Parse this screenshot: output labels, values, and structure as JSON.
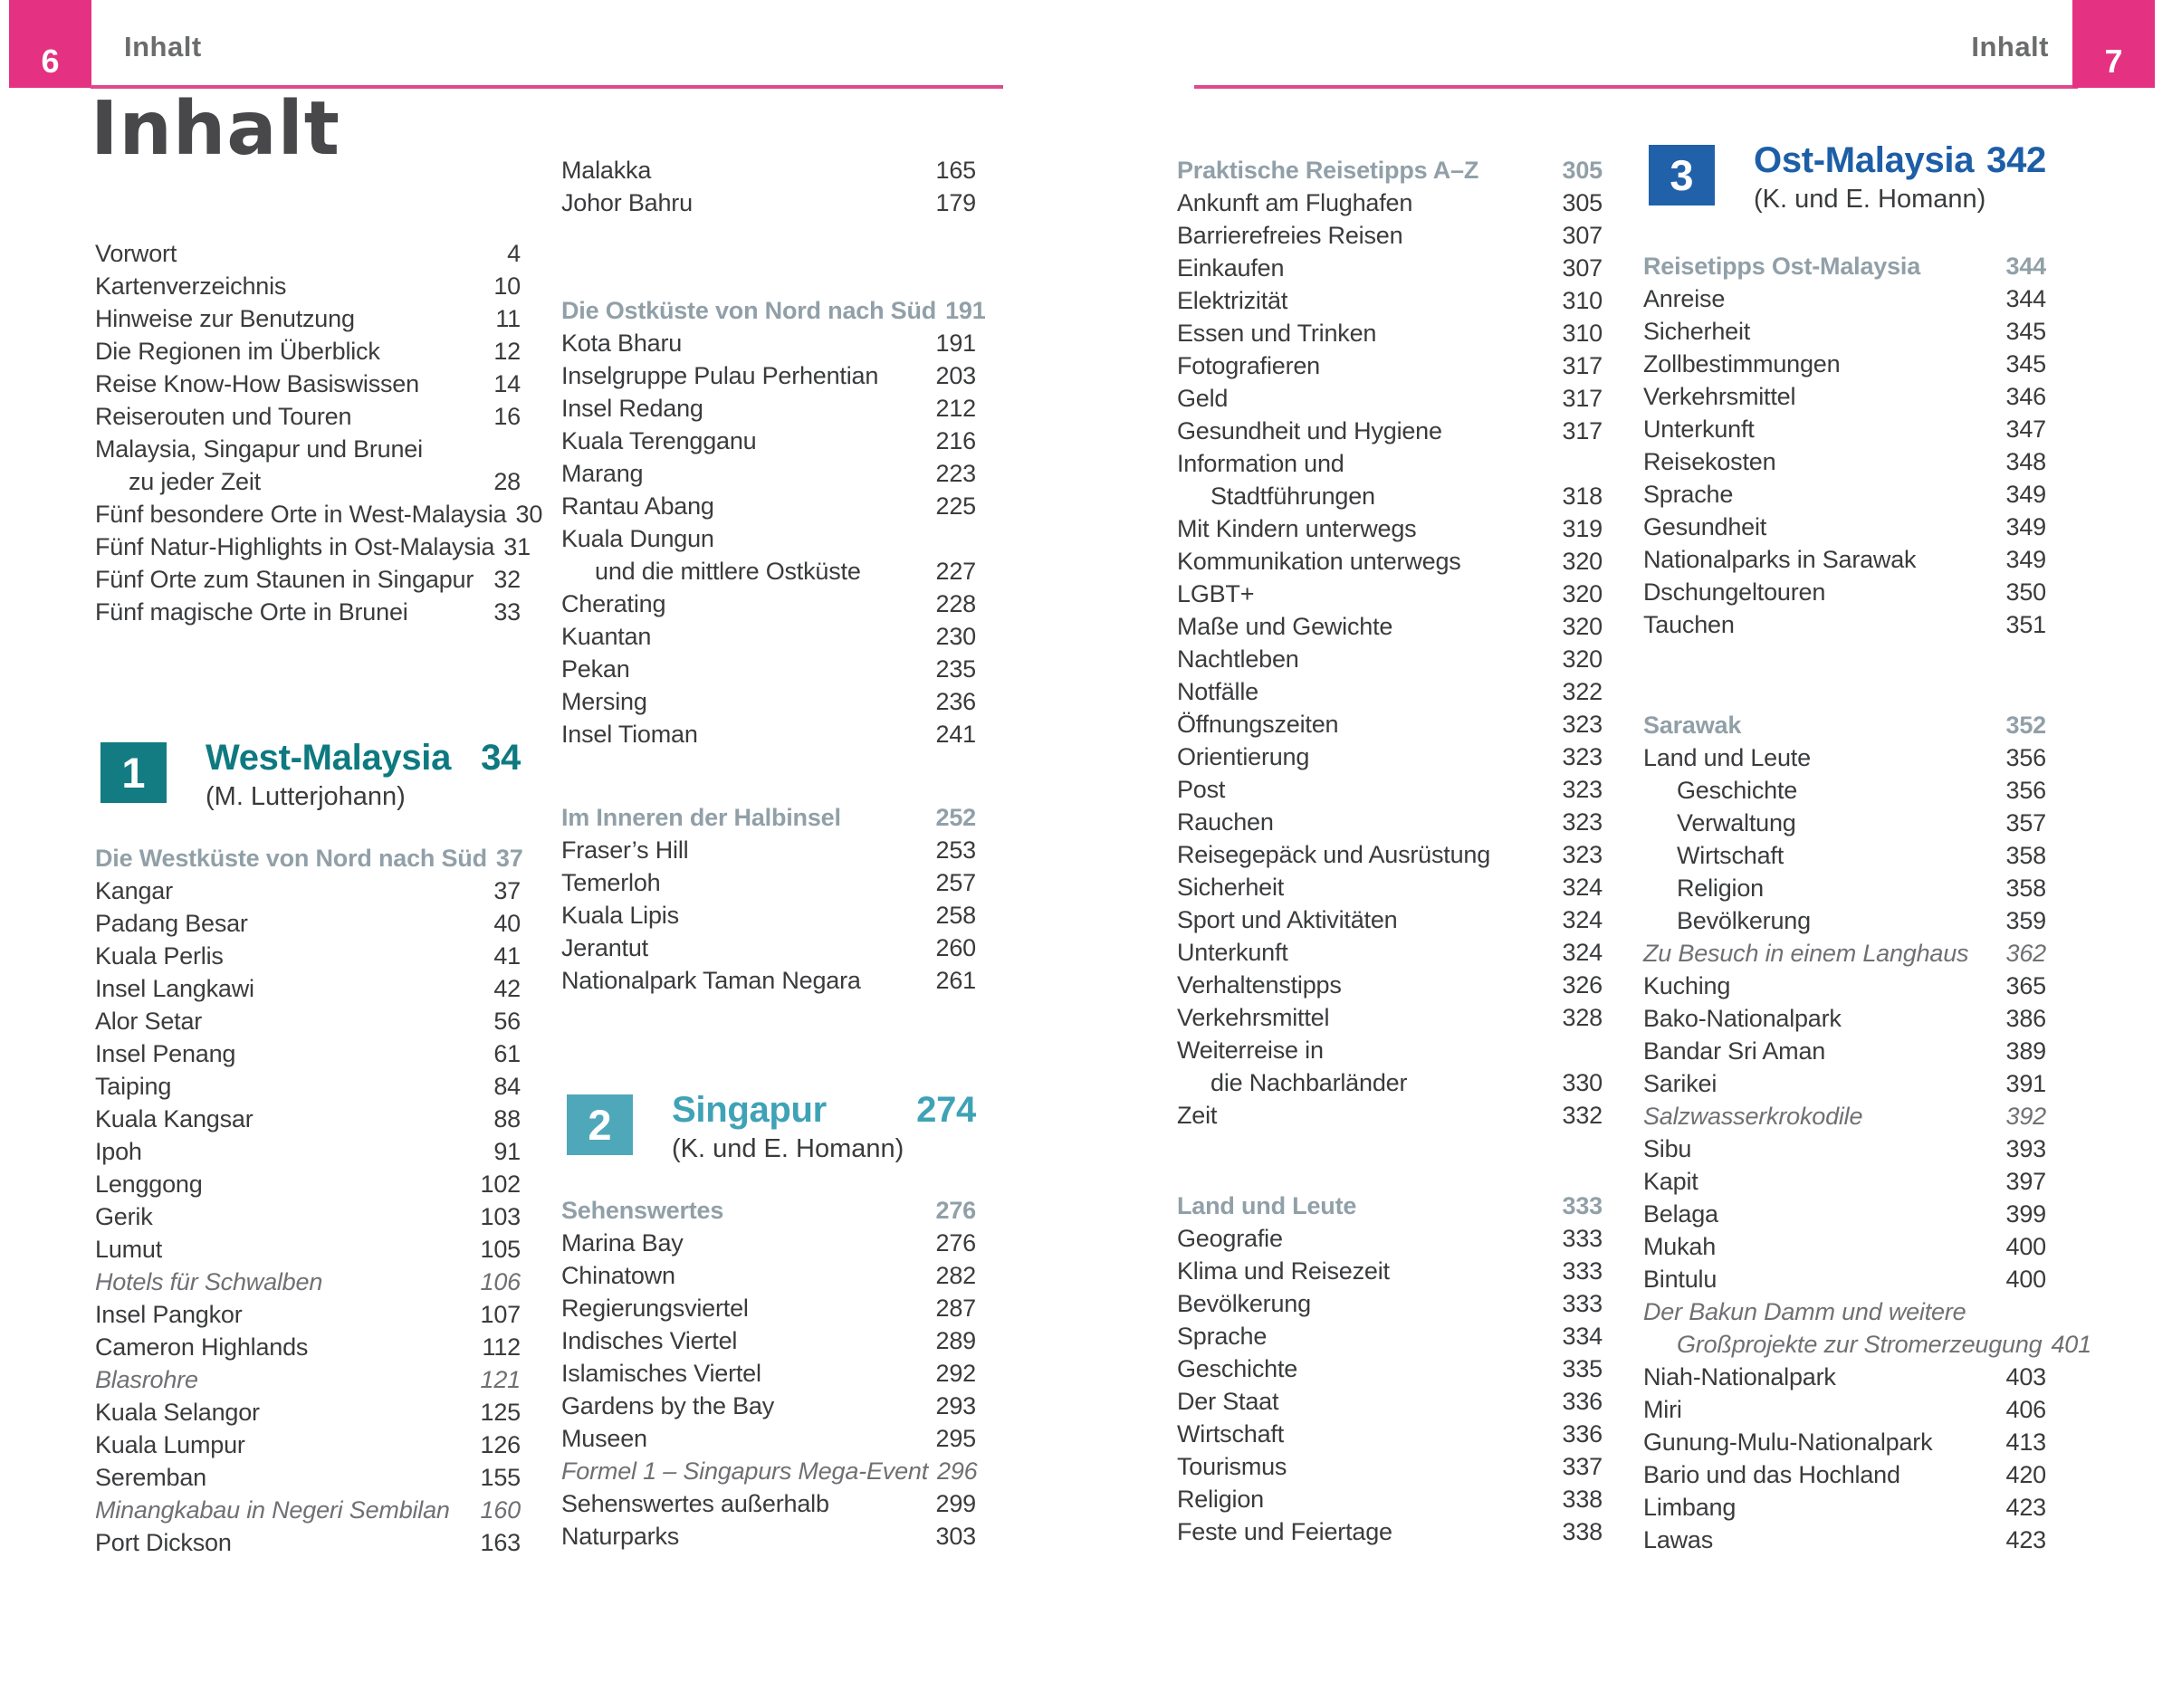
{
  "header": {
    "left_page_number": "6",
    "left_title": "Inhalt",
    "right_title": "Inhalt",
    "right_page_number": "7",
    "accent_color": "#e53181",
    "rule_color": "#dd4b8b"
  },
  "main_title": "Inhalt",
  "colors": {
    "body_text": "#3a3b3d",
    "italic_text": "#6f7073",
    "subheader": "#91a0a8",
    "section1": "#127c82",
    "section2": "#4fa8ba",
    "section3": "#2161a9"
  },
  "columns": [
    {
      "id": "1",
      "rows": [
        {
          "t": "Vorwort",
          "p": "4"
        },
        {
          "t": "Kartenverzeichnis",
          "p": "10"
        },
        {
          "t": "Hinweise zur Benutzung",
          "p": "11"
        },
        {
          "t": "Die Regionen im Überblick",
          "p": "12"
        },
        {
          "t": "Reise Know-How Basiswissen",
          "p": "14"
        },
        {
          "t": "Reiserouten und Touren",
          "p": "16"
        },
        {
          "t": "Malaysia, Singapur und Brunei",
          "p": ""
        },
        {
          "t": "zu jeder Zeit",
          "p": "28",
          "indent": true
        },
        {
          "t": "Fünf besondere Orte in West-Malaysia",
          "p": "30"
        },
        {
          "t": "Fünf Natur-Highlights in Ost-Malaysia",
          "p": "31"
        },
        {
          "t": "Fünf Orte zum Staunen in Singapur",
          "p": "32"
        },
        {
          "t": "Fünf magische Orte in Brunei",
          "p": "33"
        },
        {
          "type": "gap",
          "size": 124
        },
        {
          "type": "section",
          "number": "1",
          "title": "West-Malaysia",
          "p": "34",
          "author": "(M. Lutterjohann)",
          "box_color": "#127c82",
          "title_color": "#0e7a80"
        },
        {
          "type": "subheader",
          "t": "Die Westküste von Nord nach Süd",
          "p": "37"
        },
        {
          "t": "Kangar",
          "p": "37"
        },
        {
          "t": "Padang Besar",
          "p": "40"
        },
        {
          "t": "Kuala Perlis",
          "p": "41"
        },
        {
          "t": "Insel Langkawi",
          "p": "42"
        },
        {
          "t": "Alor Setar",
          "p": "56"
        },
        {
          "t": "Insel Penang",
          "p": "61"
        },
        {
          "t": "Taiping",
          "p": "84"
        },
        {
          "t": "Kuala Kangsar",
          "p": "88"
        },
        {
          "t": "Ipoh",
          "p": "91"
        },
        {
          "t": "Lenggong",
          "p": "102"
        },
        {
          "t": "Gerik",
          "p": "103"
        },
        {
          "t": "Lumut",
          "p": "105"
        },
        {
          "t": "Hotels für Schwalben",
          "p": "106",
          "style": "italic"
        },
        {
          "t": "Insel Pangkor",
          "p": "107"
        },
        {
          "t": "Cameron Highlands",
          "p": "112"
        },
        {
          "t": "Blasrohre",
          "p": "121",
          "style": "italic"
        },
        {
          "t": "Kuala Selangor",
          "p": "125"
        },
        {
          "t": "Kuala Lumpur",
          "p": "126"
        },
        {
          "t": "Seremban",
          "p": "155"
        },
        {
          "t": "Minangkabau in Negeri Sembilan",
          "p": "160",
          "style": "italic"
        },
        {
          "t": "Port Dickson",
          "p": "163"
        }
      ]
    },
    {
      "id": "2",
      "rows": [
        {
          "t": "Malakka",
          "p": "165"
        },
        {
          "t": "Johor Bahru",
          "p": "179"
        },
        {
          "type": "gap",
          "size": 83
        },
        {
          "type": "subheader",
          "t": "Die Ostküste von Nord nach Süd",
          "p": "191"
        },
        {
          "t": "Kota Bharu",
          "p": "191"
        },
        {
          "t": "Inselgruppe Pulau Perhentian",
          "p": "203"
        },
        {
          "t": "Insel Redang",
          "p": "212"
        },
        {
          "t": "Kuala Terengganu",
          "p": "216"
        },
        {
          "t": "Marang",
          "p": "223"
        },
        {
          "t": "Rantau Abang",
          "p": "225"
        },
        {
          "t": "Kuala Dungun",
          "p": ""
        },
        {
          "t": "und die mittlere Ostküste",
          "p": "227",
          "indent": true
        },
        {
          "t": "Cherating",
          "p": "228"
        },
        {
          "t": "Kuantan",
          "p": "230"
        },
        {
          "t": "Pekan",
          "p": "235"
        },
        {
          "t": "Mersing",
          "p": "236"
        },
        {
          "t": "Insel Tioman",
          "p": "241"
        },
        {
          "type": "gap",
          "size": 56
        },
        {
          "type": "subheader",
          "t": "Im Inneren der Halbinsel",
          "p": "252"
        },
        {
          "t": "Fraser’s Hill",
          "p": "253"
        },
        {
          "t": "Temerloh",
          "p": "257"
        },
        {
          "t": "Kuala Lipis",
          "p": "258"
        },
        {
          "t": "Jerantut",
          "p": "260"
        },
        {
          "t": "Nationalpark Taman Negara",
          "p": "261"
        },
        {
          "type": "gap",
          "size": 106
        },
        {
          "type": "section",
          "number": "2",
          "title": "Singapur",
          "p": "274",
          "author": "(K. und E. Homann)",
          "box_color": "#4fa8ba",
          "title_color": "#3fa2b6"
        },
        {
          "type": "subheader",
          "t": "Sehenswertes",
          "p": "276"
        },
        {
          "t": "Marina Bay",
          "p": "276"
        },
        {
          "t": "Chinatown",
          "p": "282"
        },
        {
          "t": "Regierungsviertel",
          "p": "287"
        },
        {
          "t": "Indisches Viertel",
          "p": "289"
        },
        {
          "t": "Islamisches Viertel",
          "p": "292"
        },
        {
          "t": "Gardens by the Bay",
          "p": "293"
        },
        {
          "t": "Museen",
          "p": "295"
        },
        {
          "t": "Formel 1 – Singapurs Mega-Event",
          "p": "296",
          "style": "italic"
        },
        {
          "t": "Sehenswertes außerhalb",
          "p": "299"
        },
        {
          "t": "Naturparks",
          "p": "303"
        }
      ]
    },
    {
      "id": "3",
      "rows": [
        {
          "type": "subheader",
          "t": "Praktische Reisetipps A–Z",
          "p": "305"
        },
        {
          "t": "Ankunft am Flughafen",
          "p": "305"
        },
        {
          "t": "Barrierefreies Reisen",
          "p": "307"
        },
        {
          "t": "Einkaufen",
          "p": "307"
        },
        {
          "t": "Elektrizität",
          "p": "310"
        },
        {
          "t": "Essen und Trinken",
          "p": "310"
        },
        {
          "t": "Fotografieren",
          "p": "317"
        },
        {
          "t": "Geld",
          "p": "317"
        },
        {
          "t": "Gesundheit und Hygiene",
          "p": "317"
        },
        {
          "t": "Information und",
          "p": ""
        },
        {
          "t": "Stadtführungen",
          "p": "318",
          "indent": true
        },
        {
          "t": "Mit Kindern unterwegs",
          "p": "319"
        },
        {
          "t": "Kommunikation unterwegs",
          "p": "320"
        },
        {
          "t": "LGBT+",
          "p": "320"
        },
        {
          "t": "Maße und Gewichte",
          "p": "320"
        },
        {
          "t": "Nachtleben",
          "p": "320"
        },
        {
          "t": "Notfälle",
          "p": "322"
        },
        {
          "t": "Öffnungszeiten",
          "p": "323"
        },
        {
          "t": "Orientierung",
          "p": "323"
        },
        {
          "t": "Post",
          "p": "323"
        },
        {
          "t": "Rauchen",
          "p": "323"
        },
        {
          "t": "Reisegepäck und Ausrüstung",
          "p": "323"
        },
        {
          "t": "Sicherheit",
          "p": "324"
        },
        {
          "t": "Sport und Aktivitäten",
          "p": "324"
        },
        {
          "t": "Unterkunft",
          "p": "324"
        },
        {
          "t": "Verhaltenstipps",
          "p": "326"
        },
        {
          "t": "Verkehrsmittel",
          "p": "328"
        },
        {
          "t": "Weiterreise in",
          "p": ""
        },
        {
          "t": "die Nachbarländer",
          "p": "330",
          "indent": true
        },
        {
          "t": "Zeit",
          "p": "332"
        },
        {
          "type": "gap",
          "size": 64
        },
        {
          "type": "subheader",
          "t": "Land und Leute",
          "p": "333"
        },
        {
          "t": "Geografie",
          "p": "333"
        },
        {
          "t": "Klima und Reisezeit",
          "p": "333"
        },
        {
          "t": "Bevölkerung",
          "p": "333"
        },
        {
          "t": "Sprache",
          "p": "334"
        },
        {
          "t": "Geschichte",
          "p": "335"
        },
        {
          "t": "Der Staat",
          "p": "336"
        },
        {
          "t": "Wirtschaft",
          "p": "336"
        },
        {
          "t": "Tourismus",
          "p": "337"
        },
        {
          "t": "Religion",
          "p": "338"
        },
        {
          "t": "Feste und Feiertage",
          "p": "338"
        }
      ]
    },
    {
      "id": "4",
      "rows": [
        {
          "type": "section",
          "number": "3",
          "title": "Ost-Malaysia",
          "p": "342",
          "author": "(K. und E. Homann)",
          "box_color": "#2161a9",
          "title_color": "#1d5ea7"
        },
        {
          "type": "gap",
          "size": 6
        },
        {
          "type": "subheader",
          "t": "Reisetipps Ost-Malaysia",
          "p": "344"
        },
        {
          "t": "Anreise",
          "p": "344"
        },
        {
          "t": "Sicherheit",
          "p": "345"
        },
        {
          "t": "Zollbestimmungen",
          "p": "345"
        },
        {
          "t": "Verkehrsmittel",
          "p": "346"
        },
        {
          "t": "Unterkunft",
          "p": "347"
        },
        {
          "t": "Reisekosten",
          "p": "348"
        },
        {
          "t": "Sprache",
          "p": "349"
        },
        {
          "t": "Gesundheit",
          "p": "349"
        },
        {
          "t": "Nationalparks in Sarawak",
          "p": "349"
        },
        {
          "t": "Dschungeltouren",
          "p": "350"
        },
        {
          "t": "Tauchen",
          "p": "351"
        },
        {
          "type": "gap",
          "size": 75
        },
        {
          "type": "subheader",
          "t": "Sarawak",
          "p": "352"
        },
        {
          "t": "Land und Leute",
          "p": "356"
        },
        {
          "t": "Geschichte",
          "p": "356",
          "indent": true
        },
        {
          "t": "Verwaltung",
          "p": "357",
          "indent": true
        },
        {
          "t": "Wirtschaft",
          "p": "358",
          "indent": true
        },
        {
          "t": "Religion",
          "p": "358",
          "indent": true
        },
        {
          "t": "Bevölkerung",
          "p": "359",
          "indent": true
        },
        {
          "t": "Zu Besuch in einem Langhaus",
          "p": "362",
          "style": "italic"
        },
        {
          "t": "Kuching",
          "p": "365"
        },
        {
          "t": "Bako-Nationalpark",
          "p": "386"
        },
        {
          "t": "Bandar Sri Aman",
          "p": "389"
        },
        {
          "t": "Sarikei",
          "p": "391"
        },
        {
          "t": "Salzwasserkrokodile",
          "p": "392",
          "style": "italic"
        },
        {
          "t": "Sibu",
          "p": "393"
        },
        {
          "t": "Kapit",
          "p": "397"
        },
        {
          "t": "Belaga",
          "p": "399"
        },
        {
          "t": "Mukah",
          "p": "400"
        },
        {
          "t": "Bintulu",
          "p": "400"
        },
        {
          "t": "Der Bakun Damm und weitere",
          "p": "",
          "style": "italic"
        },
        {
          "t": "Großprojekte zur Stromerzeugung",
          "p": "401",
          "style": "italic",
          "indent": true
        },
        {
          "t": "Niah-Nationalpark",
          "p": "403"
        },
        {
          "t": "Miri",
          "p": "406"
        },
        {
          "t": "Gunung-Mulu-Nationalpark",
          "p": "413"
        },
        {
          "t": "Bario und das Hochland",
          "p": "420"
        },
        {
          "t": "Limbang",
          "p": "423"
        },
        {
          "t": "Lawas",
          "p": "423"
        }
      ]
    }
  ]
}
